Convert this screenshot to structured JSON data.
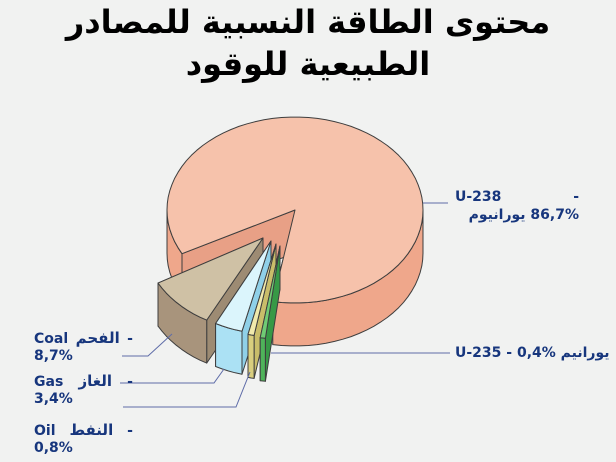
{
  "slide": {
    "background": "#F1F2F1"
  },
  "title": {
    "line1": "محتوى الطاقة النسبية للمصادر",
    "line2": "الطبيعية للوقود"
  },
  "labels": {
    "u238": {
      "name": "U-238",
      "dash": "-",
      "detail": "86,7% يورانيوم"
    },
    "u235": {
      "text": "U-235 - 0,4% يورانيم"
    },
    "coal": {
      "en": "Coal",
      "ar": "الفحم",
      "dash": "-",
      "pct": "8,7%"
    },
    "gas": {
      "en": "Gas",
      "ar": "الغاز",
      "dash": "-",
      "pct": "3,4%"
    },
    "oil": {
      "en": "Oil",
      "ar": "النفط",
      "dash": "-",
      "pct": "0,8%"
    }
  },
  "chart_data": {
    "type": "pie",
    "style": "3d-exploded",
    "title": "محتوى الطاقة النسبية للمصادر الطبيعية للوقود",
    "legend_position": "none",
    "text_color": "#17367D",
    "leader_line_color": "#5E6CA8",
    "outline_color": "#3E3E3E",
    "slices": [
      {
        "id": "u238",
        "label": "U-238 يورانيوم",
        "value_pct": 86.7,
        "exploded": false,
        "colors": {
          "top": "#F6C2AB",
          "side": "#EFA78B",
          "edge0": "#F2AC90",
          "edge1": "#E8A086"
        }
      },
      {
        "id": "coal",
        "label": "Coal الفحم",
        "value_pct": 8.7,
        "exploded": true,
        "colors": {
          "top": "#CFC1A5",
          "side": "#A8947C",
          "edge0": "#B3A084",
          "edge1": "#9D8B73"
        }
      },
      {
        "id": "gas",
        "label": "Gas الغاز",
        "value_pct": 3.4,
        "exploded": true,
        "colors": {
          "top": "#DBF5FC",
          "side": "#ABE1F4",
          "edge0": "#C6EDF9",
          "edge1": "#8FD0E8"
        }
      },
      {
        "id": "oil",
        "label": "Oil النفط",
        "value_pct": 0.8,
        "exploded": true,
        "colors": {
          "top": "#F0E9AC",
          "side": "#D9CE7E",
          "edge0": "#EAE098",
          "edge1": "#C9BD6A"
        }
      },
      {
        "id": "u235",
        "label": "U-235 يورانيم",
        "value_pct": 0.4,
        "exploded": true,
        "colors": {
          "top": "#70CB74",
          "side": "#4FB35A",
          "edge0": "#66C46C",
          "edge1": "#379946"
        }
      }
    ]
  }
}
